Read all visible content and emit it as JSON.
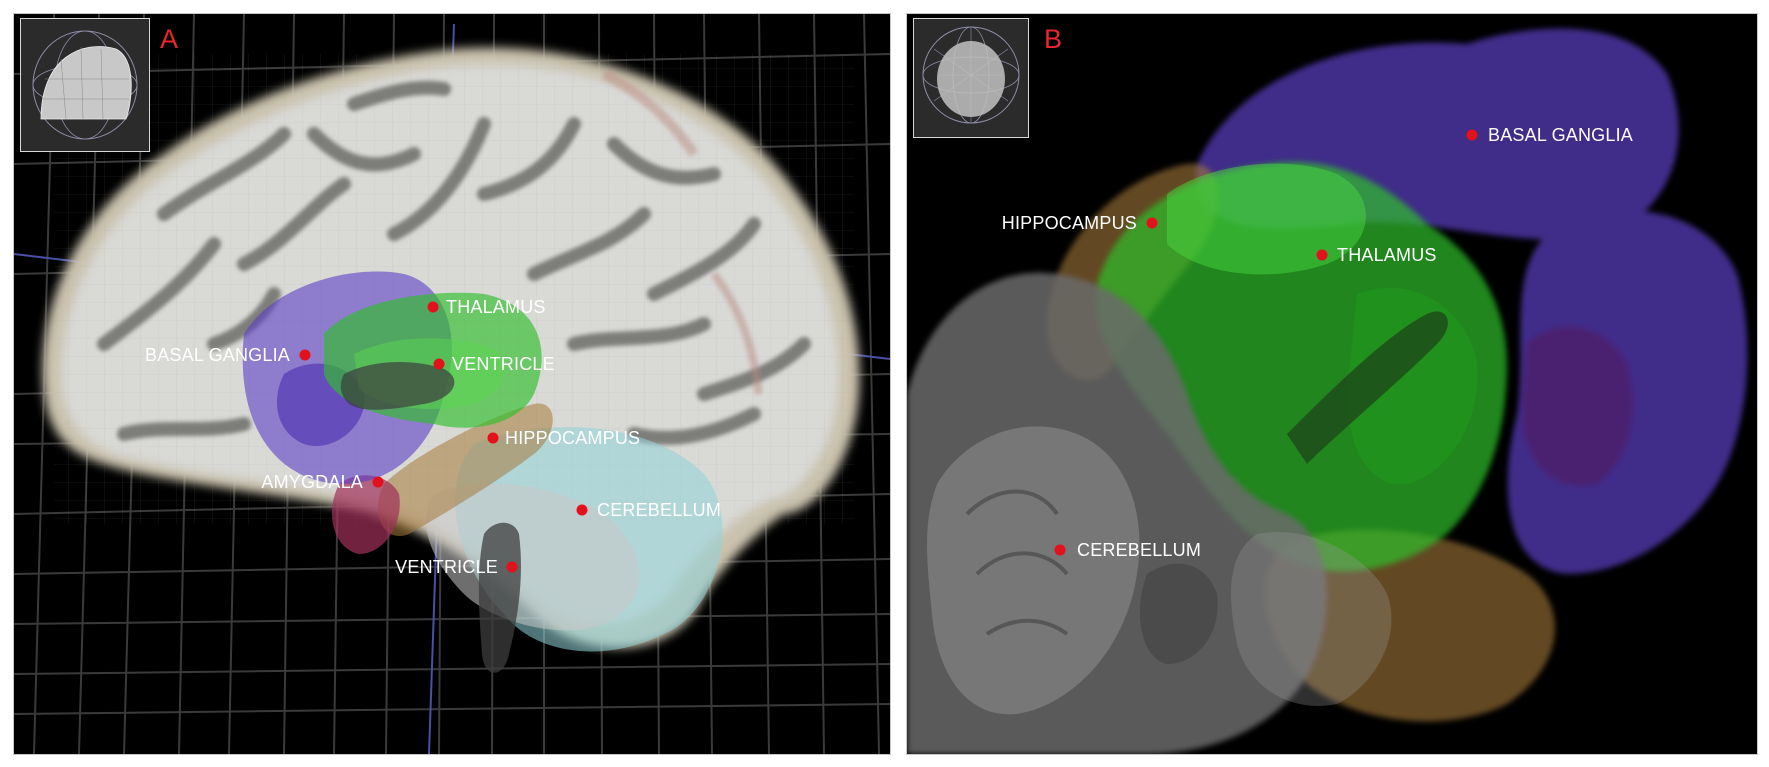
{
  "panels": [
    {
      "id": "A",
      "letter": "A",
      "labels": {
        "thalamus": "THALAMUS",
        "basal_ganglia": "BASAL GANGLIA",
        "ventricle_upper": "VENTRICLE",
        "hippocampus": "HIPPOCAMPUS",
        "amygdala": "AMYGDALA",
        "cerebellum": "CEREBELLUM",
        "ventricle_lower": "VENTRICLE"
      }
    },
    {
      "id": "B",
      "letter": "B",
      "labels": {
        "basal_ganglia": "BASAL GANGLIA",
        "hippocampus": "HIPPOCAMPUS",
        "thalamus": "THALAMUS",
        "cerebellum": "CEREBELLUM"
      }
    }
  ],
  "colors": {
    "marker": "#e3111c",
    "panel_letter": "#e8262b",
    "label_text": "#ffffff",
    "background": "#000000",
    "thalamus": "#2fbf2a",
    "basal_ganglia": "#5b3fc4",
    "hippocampus": "#a57a3a",
    "amygdala": "#a0305a",
    "cerebellum": "#8fd3d8",
    "ventricle": "#3d3d3d"
  }
}
